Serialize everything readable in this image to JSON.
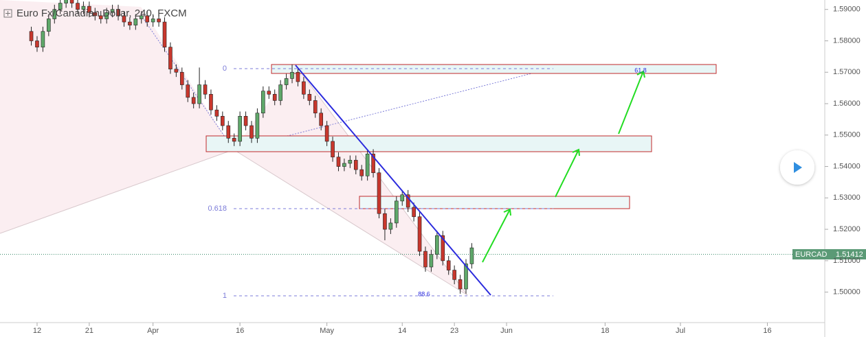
{
  "chart_data": {
    "type": "candlestick",
    "title": "Euro Fx/Canadian Dollar, 240, FXCM",
    "symbol": "EURCAD",
    "last_price": 1.51412,
    "xlim": [
      -6.4,
      135.9
    ],
    "xticks": [
      {
        "value": 0,
        "label": "12"
      },
      {
        "value": 9,
        "label": "21"
      },
      {
        "value": 20,
        "label": "Apr"
      },
      {
        "value": 35,
        "label": "16"
      },
      {
        "value": 50,
        "label": "May"
      },
      {
        "value": 63,
        "label": "14"
      },
      {
        "value": 72,
        "label": "23"
      },
      {
        "value": 81,
        "label": "Jun"
      },
      {
        "value": 98,
        "label": "18"
      },
      {
        "value": 111,
        "label": "Jul"
      },
      {
        "value": 126,
        "label": "16"
      }
    ],
    "ylim": [
      1.4903,
      1.593
    ],
    "yticks": [
      {
        "value": 1.5,
        "label": "1.50000"
      },
      {
        "value": 1.51,
        "label": "1.51000"
      },
      {
        "value": 1.52,
        "label": "1.52000"
      },
      {
        "value": 1.53,
        "label": "1.53000"
      },
      {
        "value": 1.54,
        "label": "1.54000"
      },
      {
        "value": 1.55,
        "label": "1.55000"
      },
      {
        "value": 1.56,
        "label": "1.56000"
      },
      {
        "value": 1.57,
        "label": "1.57000"
      },
      {
        "value": 1.58,
        "label": "1.58000"
      },
      {
        "value": 1.59,
        "label": "1.59000"
      }
    ],
    "up_color": "#5fa86a",
    "down_color": "#c8372d",
    "fib_levels": [
      "0",
      "0.618",
      "1"
    ],
    "fib_notes": [
      "61.8",
      "88.6"
    ],
    "x": [
      -1,
      0,
      1,
      2,
      3,
      4,
      5,
      6,
      7,
      8,
      9,
      10,
      11,
      12,
      13,
      14,
      15,
      16,
      17,
      18,
      19,
      20,
      21,
      22,
      23,
      24,
      25,
      26,
      27,
      28,
      29,
      30,
      31,
      32,
      33,
      34,
      35,
      36,
      37,
      38,
      39,
      40,
      41,
      42,
      43,
      44,
      45,
      46,
      47,
      48,
      49,
      50,
      51,
      52,
      53,
      54,
      55,
      56,
      57,
      58,
      59,
      60,
      61,
      62,
      63,
      64,
      65,
      66,
      67,
      68,
      69,
      70,
      71,
      72,
      73,
      74,
      75
    ],
    "candles": [
      [
        1.583,
        1.5845,
        1.5785,
        1.58
      ],
      [
        1.58,
        1.5815,
        1.5765,
        1.578
      ],
      [
        1.578,
        1.5845,
        1.5765,
        1.583
      ],
      [
        1.583,
        1.5885,
        1.5815,
        1.587
      ],
      [
        1.587,
        1.5915,
        1.5855,
        1.59
      ],
      [
        1.59,
        1.5935,
        1.5885,
        1.592
      ],
      [
        1.592,
        1.5955,
        1.5905,
        1.594
      ],
      [
        1.594,
        1.5955,
        1.5905,
        1.592
      ],
      [
        1.592,
        1.5935,
        1.5885,
        1.59
      ],
      [
        1.59,
        1.5925,
        1.5885,
        1.591
      ],
      [
        1.591,
        1.5925,
        1.5875,
        1.589
      ],
      [
        1.589,
        1.5905,
        1.5865,
        1.588
      ],
      [
        1.588,
        1.5895,
        1.5855,
        1.587
      ],
      [
        1.587,
        1.5905,
        1.5855,
        1.589
      ],
      [
        1.589,
        1.5915,
        1.5875,
        1.59
      ],
      [
        1.59,
        1.5915,
        1.5865,
        1.588
      ],
      [
        1.588,
        1.5895,
        1.5845,
        1.586
      ],
      [
        1.586,
        1.5875,
        1.5835,
        1.585
      ],
      [
        1.585,
        1.5885,
        1.5835,
        1.587
      ],
      [
        1.587,
        1.5895,
        1.5855,
        1.588
      ],
      [
        1.588,
        1.5895,
        1.5845,
        1.586
      ],
      [
        1.586,
        1.5885,
        1.5845,
        1.587
      ],
      [
        1.587,
        1.5885,
        1.5845,
        1.586
      ],
      [
        1.586,
        1.5875,
        1.5765,
        1.578
      ],
      [
        1.578,
        1.5795,
        1.5695,
        1.571
      ],
      [
        1.571,
        1.5725,
        1.5685,
        1.57
      ],
      [
        1.57,
        1.5715,
        1.5645,
        1.566
      ],
      [
        1.566,
        1.5675,
        1.5605,
        1.562
      ],
      [
        1.562,
        1.5635,
        1.5585,
        1.56
      ],
      [
        1.56,
        1.5715,
        1.5585,
        1.566
      ],
      [
        1.566,
        1.5675,
        1.5615,
        1.563
      ],
      [
        1.563,
        1.5645,
        1.5565,
        1.558
      ],
      [
        1.558,
        1.5595,
        1.5545,
        1.556
      ],
      [
        1.556,
        1.5575,
        1.5515,
        1.553
      ],
      [
        1.553,
        1.5545,
        1.5475,
        1.549
      ],
      [
        1.549,
        1.5505,
        1.5465,
        1.548
      ],
      [
        1.548,
        1.5575,
        1.5465,
        1.556
      ],
      [
        1.556,
        1.5575,
        1.5515,
        1.553
      ],
      [
        1.553,
        1.5545,
        1.5475,
        1.549
      ],
      [
        1.549,
        1.5585,
        1.5475,
        1.557
      ],
      [
        1.557,
        1.5655,
        1.5555,
        1.564
      ],
      [
        1.564,
        1.5655,
        1.5615,
        1.563
      ],
      [
        1.563,
        1.5645,
        1.5595,
        1.561
      ],
      [
        1.561,
        1.5675,
        1.5595,
        1.566
      ],
      [
        1.566,
        1.5695,
        1.5645,
        1.568
      ],
      [
        1.568,
        1.5725,
        1.5665,
        1.57
      ],
      [
        1.57,
        1.5715,
        1.5655,
        1.567
      ],
      [
        1.567,
        1.5685,
        1.5615,
        1.563
      ],
      [
        1.563,
        1.5645,
        1.5595,
        1.561
      ],
      [
        1.561,
        1.5625,
        1.5555,
        1.557
      ],
      [
        1.557,
        1.5585,
        1.5515,
        1.553
      ],
      [
        1.553,
        1.5545,
        1.5465,
        1.548
      ],
      [
        1.548,
        1.5495,
        1.5415,
        1.543
      ],
      [
        1.543,
        1.5445,
        1.5385,
        1.54
      ],
      [
        1.54,
        1.5425,
        1.5385,
        1.541
      ],
      [
        1.541,
        1.5435,
        1.5395,
        1.542
      ],
      [
        1.542,
        1.5435,
        1.5375,
        1.539
      ],
      [
        1.539,
        1.5405,
        1.5355,
        1.537
      ],
      [
        1.537,
        1.5455,
        1.5355,
        1.544
      ],
      [
        1.544,
        1.5455,
        1.5365,
        1.538
      ],
      [
        1.538,
        1.5395,
        1.5235,
        1.525
      ],
      [
        1.525,
        1.5265,
        1.5165,
        1.52
      ],
      [
        1.52,
        1.5235,
        1.5185,
        1.522
      ],
      [
        1.522,
        1.5305,
        1.5205,
        1.529
      ],
      [
        1.529,
        1.5325,
        1.5275,
        1.531
      ],
      [
        1.531,
        1.5325,
        1.5255,
        1.527
      ],
      [
        1.527,
        1.5285,
        1.5225,
        1.524
      ],
      [
        1.524,
        1.5255,
        1.5115,
        1.513
      ],
      [
        1.513,
        1.5145,
        1.5065,
        1.508
      ],
      [
        1.508,
        1.5135,
        1.5065,
        1.512
      ],
      [
        1.512,
        1.5195,
        1.5105,
        1.518
      ],
      [
        1.518,
        1.5195,
        1.5085,
        1.51
      ],
      [
        1.51,
        1.5115,
        1.5055,
        1.507
      ],
      [
        1.507,
        1.5085,
        1.5025,
        1.504
      ],
      [
        1.504,
        1.5055,
        1.4995,
        1.501
      ],
      [
        1.501,
        1.5105,
        1.4995,
        1.509
      ],
      [
        1.509,
        1.5156,
        1.5075,
        1.5141
      ]
    ]
  }
}
